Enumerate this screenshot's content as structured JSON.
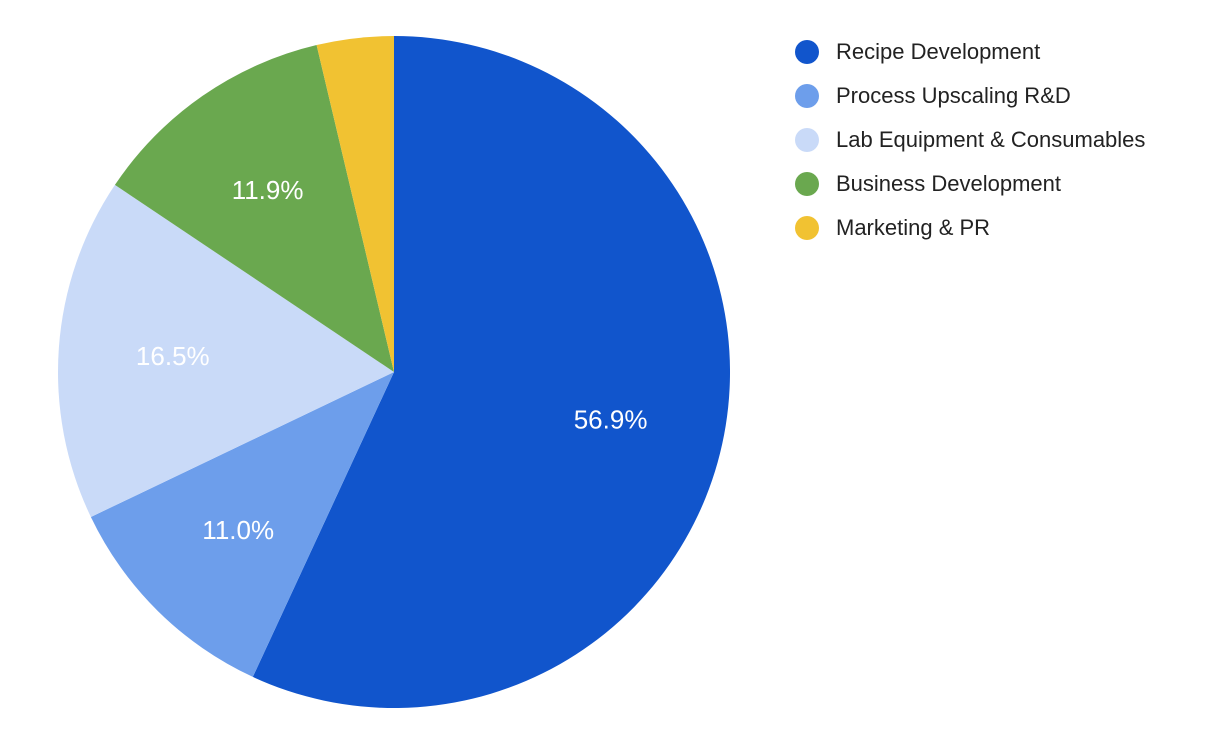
{
  "chart_data": {
    "type": "pie",
    "title": "",
    "labels": [
      "Recipe Development",
      "Process Upscaling R&D",
      "Lab Equipment & Consumables",
      "Business Development",
      "Marketing & PR"
    ],
    "values": [
      56.9,
      11.0,
      16.5,
      11.9,
      3.7
    ],
    "slice_labels": [
      "56.9%",
      "11.0%",
      "16.5%",
      "11.9%",
      ""
    ],
    "colors": [
      "#1155cc",
      "#6d9eeb",
      "#c9daf8",
      "#6aa84f",
      "#f1c232"
    ],
    "start_angle": "12 o'clock",
    "direction": "clockwise",
    "legend_position": "top-right"
  }
}
